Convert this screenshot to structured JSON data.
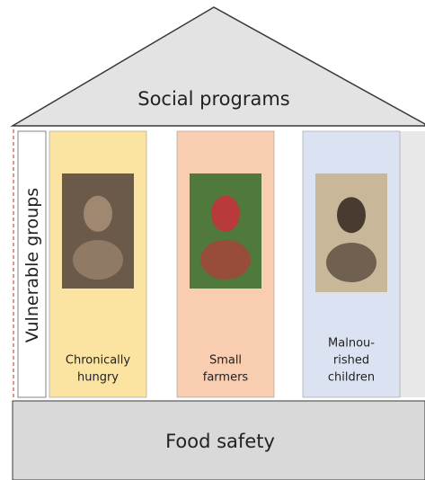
{
  "roof": {
    "title": "Social programs"
  },
  "side_label": "Vulnerable groups",
  "pillars": [
    {
      "label_lines": [
        "Chronically",
        "hungry"
      ]
    },
    {
      "label_lines": [
        "Small",
        "farmers"
      ]
    },
    {
      "label_lines": [
        "Malnou-",
        "rished",
        "children"
      ]
    }
  ],
  "base": {
    "title": "Food safety"
  }
}
